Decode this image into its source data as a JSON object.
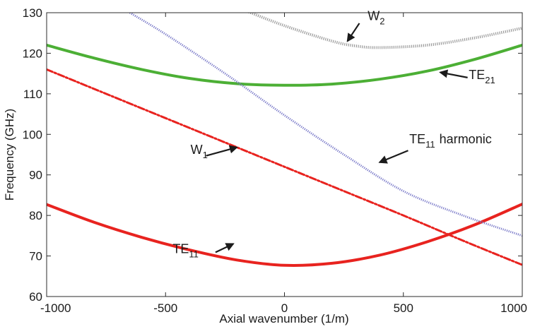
{
  "chart_data": {
    "type": "line",
    "xlabel": "Axial wavenumber (1/m)",
    "ylabel": "Frequency (GHz)",
    "xlim": [
      -1000,
      1000
    ],
    "ylim": [
      60,
      130
    ],
    "xticks": [
      -1000,
      -500,
      0,
      500,
      1000
    ],
    "yticks": [
      60,
      70,
      80,
      90,
      100,
      110,
      120,
      130
    ],
    "xtick_labels": [
      "-1000",
      "-500",
      "0",
      "500",
      "1000"
    ],
    "ytick_labels": [
      "60",
      "70",
      "80",
      "90",
      "100",
      "110",
      "120",
      "130"
    ],
    "grid": false,
    "legend": "none",
    "series": [
      {
        "name": "TE11",
        "style": "solid",
        "color": "#e8231f",
        "width": 4,
        "x": [
          -1000,
          -800,
          -600,
          -400,
          -200,
          0,
          200,
          400,
          600,
          800,
          1000
        ],
        "y": [
          82.7,
          78.3,
          74.6,
          71.5,
          69.0,
          67.7,
          68.2,
          70.2,
          73.5,
          77.7,
          82.8
        ]
      },
      {
        "name": "W1",
        "style": "dashdot",
        "color": "#e8231f",
        "width": 3,
        "x": [
          -1000,
          -750,
          -500,
          -250,
          0,
          250,
          500,
          750,
          1000
        ],
        "y": [
          116.0,
          110.0,
          104.0,
          98.0,
          92.0,
          86.0,
          80.0,
          73.8,
          67.8
        ]
      },
      {
        "name": "TE21",
        "style": "solid",
        "color": "#4caf35",
        "width": 4,
        "x": [
          -1000,
          -800,
          -600,
          -400,
          -200,
          0,
          200,
          400,
          600,
          800,
          1000
        ],
        "y": [
          122.0,
          118.8,
          116.0,
          113.8,
          112.5,
          112.1,
          112.4,
          113.6,
          115.6,
          118.5,
          122.0
        ]
      },
      {
        "name": "TE11 harmonic",
        "style": "dotted",
        "color": "#7b7bc9",
        "width": 3,
        "x": [
          -650,
          -500,
          -250,
          0,
          250,
          500,
          750,
          1000
        ],
        "y": [
          130.0,
          124.7,
          115.0,
          104.7,
          95.0,
          86.0,
          80.0,
          75.0
        ]
      },
      {
        "name": "W2",
        "style": "dotted",
        "color": "#9a9a9a",
        "width": 4,
        "x": [
          -150,
          0,
          200,
          300,
          400,
          600,
          800,
          1000
        ],
        "y": [
          130.2,
          126.8,
          123.0,
          121.8,
          121.4,
          122.0,
          123.8,
          126.2
        ]
      }
    ],
    "annotations": [
      {
        "id": "w2",
        "main": "W",
        "sub": "2",
        "suffix": "",
        "arrow_from": [
          315,
          127.4
        ],
        "arrow_to": [
          265,
          123.0
        ],
        "text_at": [
          350,
          128.2
        ]
      },
      {
        "id": "te21",
        "main": "TE",
        "sub": "21",
        "suffix": "",
        "arrow_from": [
          770,
          114.0
        ],
        "arrow_to": [
          655,
          115.3
        ],
        "text_at": [
          775,
          113.6
        ]
      },
      {
        "id": "te11h",
        "main": "TE",
        "sub": "11",
        "suffix": "harmonic",
        "arrow_from": [
          520,
          96.0
        ],
        "arrow_to": [
          400,
          93.1
        ],
        "text_at": [
          525,
          97.8
        ]
      },
      {
        "id": "w1",
        "main": "W",
        "sub": "1",
        "suffix": "",
        "arrow_from": [
          -330,
          94.7
        ],
        "arrow_to": [
          -200,
          96.8
        ],
        "text_at": [
          -395,
          95.2
        ]
      },
      {
        "id": "te11",
        "main": "TE",
        "sub": "11",
        "suffix": "",
        "arrow_from": [
          -290,
          70.9
        ],
        "arrow_to": [
          -215,
          73.0
        ],
        "text_at": [
          -470,
          70.7
        ]
      }
    ]
  }
}
